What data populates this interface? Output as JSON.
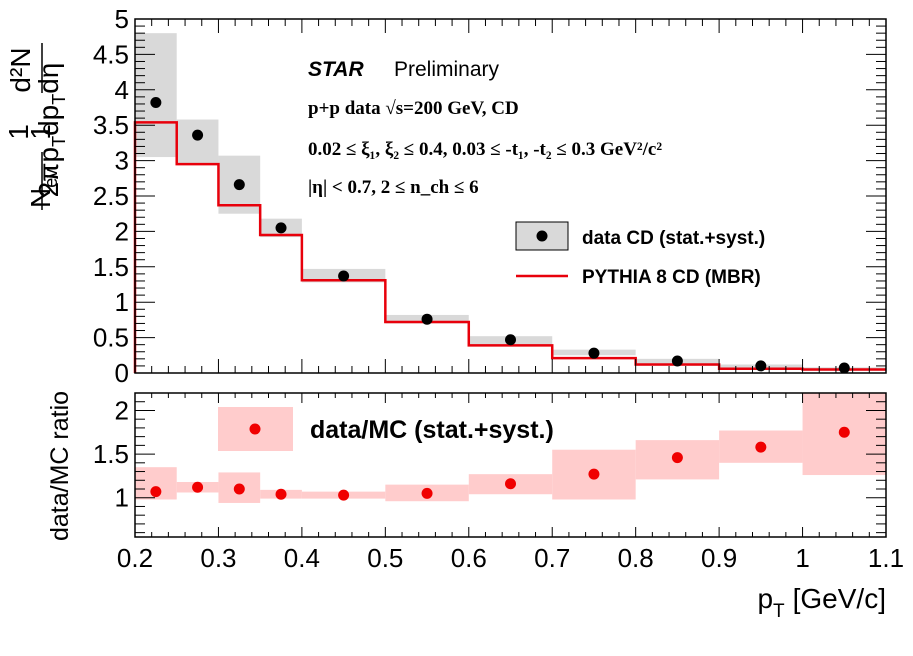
{
  "colors": {
    "data": "#000000",
    "syst_band": "#d9d9d9",
    "mc_line": "#e8000b",
    "ratio_point": "#f00000",
    "ratio_band": "#ffcccc",
    "axis": "#000000"
  },
  "chart_data": [
    {
      "type": "scatter",
      "panel": "top",
      "title": "",
      "xlabel": "",
      "ylabel_prefix": "1",
      "ylabel_nev": "N",
      "ylabel_nev_sub": "ev",
      "ylabel_num": "d²N",
      "ylabel_den": "2πp",
      "ylabel_den_sub1": "T",
      "ylabel_den_mid": "dp",
      "ylabel_den_sub2": "T",
      "ylabel_den_end": "dη",
      "ylim": [
        0,
        5
      ],
      "xlim": [
        0.2,
        1.1
      ],
      "yticks": [
        "0",
        "0.5",
        "1",
        "1.5",
        "2",
        "2.5",
        "3",
        "3.5",
        "4",
        "4.5",
        "5"
      ],
      "series": [
        {
          "name": "data CD (stat.+syst.)",
          "x": [
            0.225,
            0.275,
            0.325,
            0.375,
            0.45,
            0.55,
            0.65,
            0.75,
            0.85,
            0.95,
            1.05
          ],
          "y": [
            3.82,
            3.36,
            2.66,
            2.05,
            1.37,
            0.76,
            0.47,
            0.28,
            0.17,
            0.1,
            0.07
          ],
          "band_low": [
            3.05,
            2.95,
            2.25,
            1.92,
            1.28,
            0.7,
            0.38,
            0.25,
            0.1,
            0.05,
            0.03
          ],
          "band_high": [
            4.8,
            3.58,
            3.07,
            2.18,
            1.47,
            0.82,
            0.52,
            0.33,
            0.2,
            0.12,
            0.08
          ],
          "bin_low": [
            0.2,
            0.25,
            0.3,
            0.35,
            0.4,
            0.5,
            0.6,
            0.7,
            0.8,
            0.9,
            1.0
          ],
          "bin_high": [
            0.25,
            0.3,
            0.35,
            0.4,
            0.5,
            0.6,
            0.7,
            0.8,
            0.9,
            1.0,
            1.1
          ]
        },
        {
          "name": "PYTHIA 8 CD (MBR)",
          "type": "step",
          "edges": [
            0.2,
            0.25,
            0.3,
            0.35,
            0.4,
            0.5,
            0.6,
            0.7,
            0.8,
            0.9,
            1.0,
            1.1
          ],
          "values": [
            3.54,
            2.95,
            2.37,
            1.95,
            1.31,
            0.72,
            0.39,
            0.21,
            0.12,
            0.06,
            0.05
          ]
        }
      ],
      "annotations": {
        "star": "STAR",
        "preliminary": "Preliminary",
        "line1": "p+p data   √s=200 GeV, CD",
        "line2": "0.02  ≤  ξ₁,  ξ₂  ≤ 0.4, 0.03  ≤ -t₁, -t₂  ≤ 0.3 GeV²/c²",
        "line3": "|η| < 0.7, 2  ≤ n_ch  ≤ 6"
      },
      "legend_position": "right"
    },
    {
      "type": "scatter",
      "panel": "bottom",
      "xlabel": "p",
      "xlabel_sub": "T",
      "xlabel_unit": "[GeV/c]",
      "ylabel": "data/MC ratio",
      "ylim": [
        0.55,
        2.2
      ],
      "xlim": [
        0.2,
        1.1
      ],
      "yticks": [
        "1",
        "1.5",
        "2"
      ],
      "xticks": [
        "0.2",
        "0.3",
        "0.4",
        "0.5",
        "0.6",
        "0.7",
        "0.8",
        "0.9",
        "1",
        "1.1"
      ],
      "series": [
        {
          "name": "data/MC (stat.+syst.)",
          "x": [
            0.225,
            0.275,
            0.325,
            0.375,
            0.45,
            0.55,
            0.65,
            0.75,
            0.85,
            0.95,
            1.05
          ],
          "y": [
            1.07,
            1.12,
            1.1,
            1.04,
            1.03,
            1.05,
            1.16,
            1.27,
            1.46,
            1.58,
            1.75
          ],
          "band_low": [
            0.98,
            1.06,
            0.94,
            0.99,
            0.99,
            0.96,
            1.04,
            0.98,
            1.21,
            1.4,
            1.26
          ],
          "band_high": [
            1.35,
            1.18,
            1.29,
            1.09,
            1.07,
            1.15,
            1.27,
            1.55,
            1.66,
            1.77,
            2.2
          ],
          "bin_low": [
            0.2,
            0.25,
            0.3,
            0.35,
            0.4,
            0.5,
            0.6,
            0.7,
            0.8,
            0.9,
            1.0
          ],
          "bin_high": [
            0.25,
            0.3,
            0.35,
            0.4,
            0.5,
            0.6,
            0.7,
            0.8,
            0.9,
            1.0,
            1.1
          ]
        }
      ],
      "legend_position": "top"
    }
  ]
}
